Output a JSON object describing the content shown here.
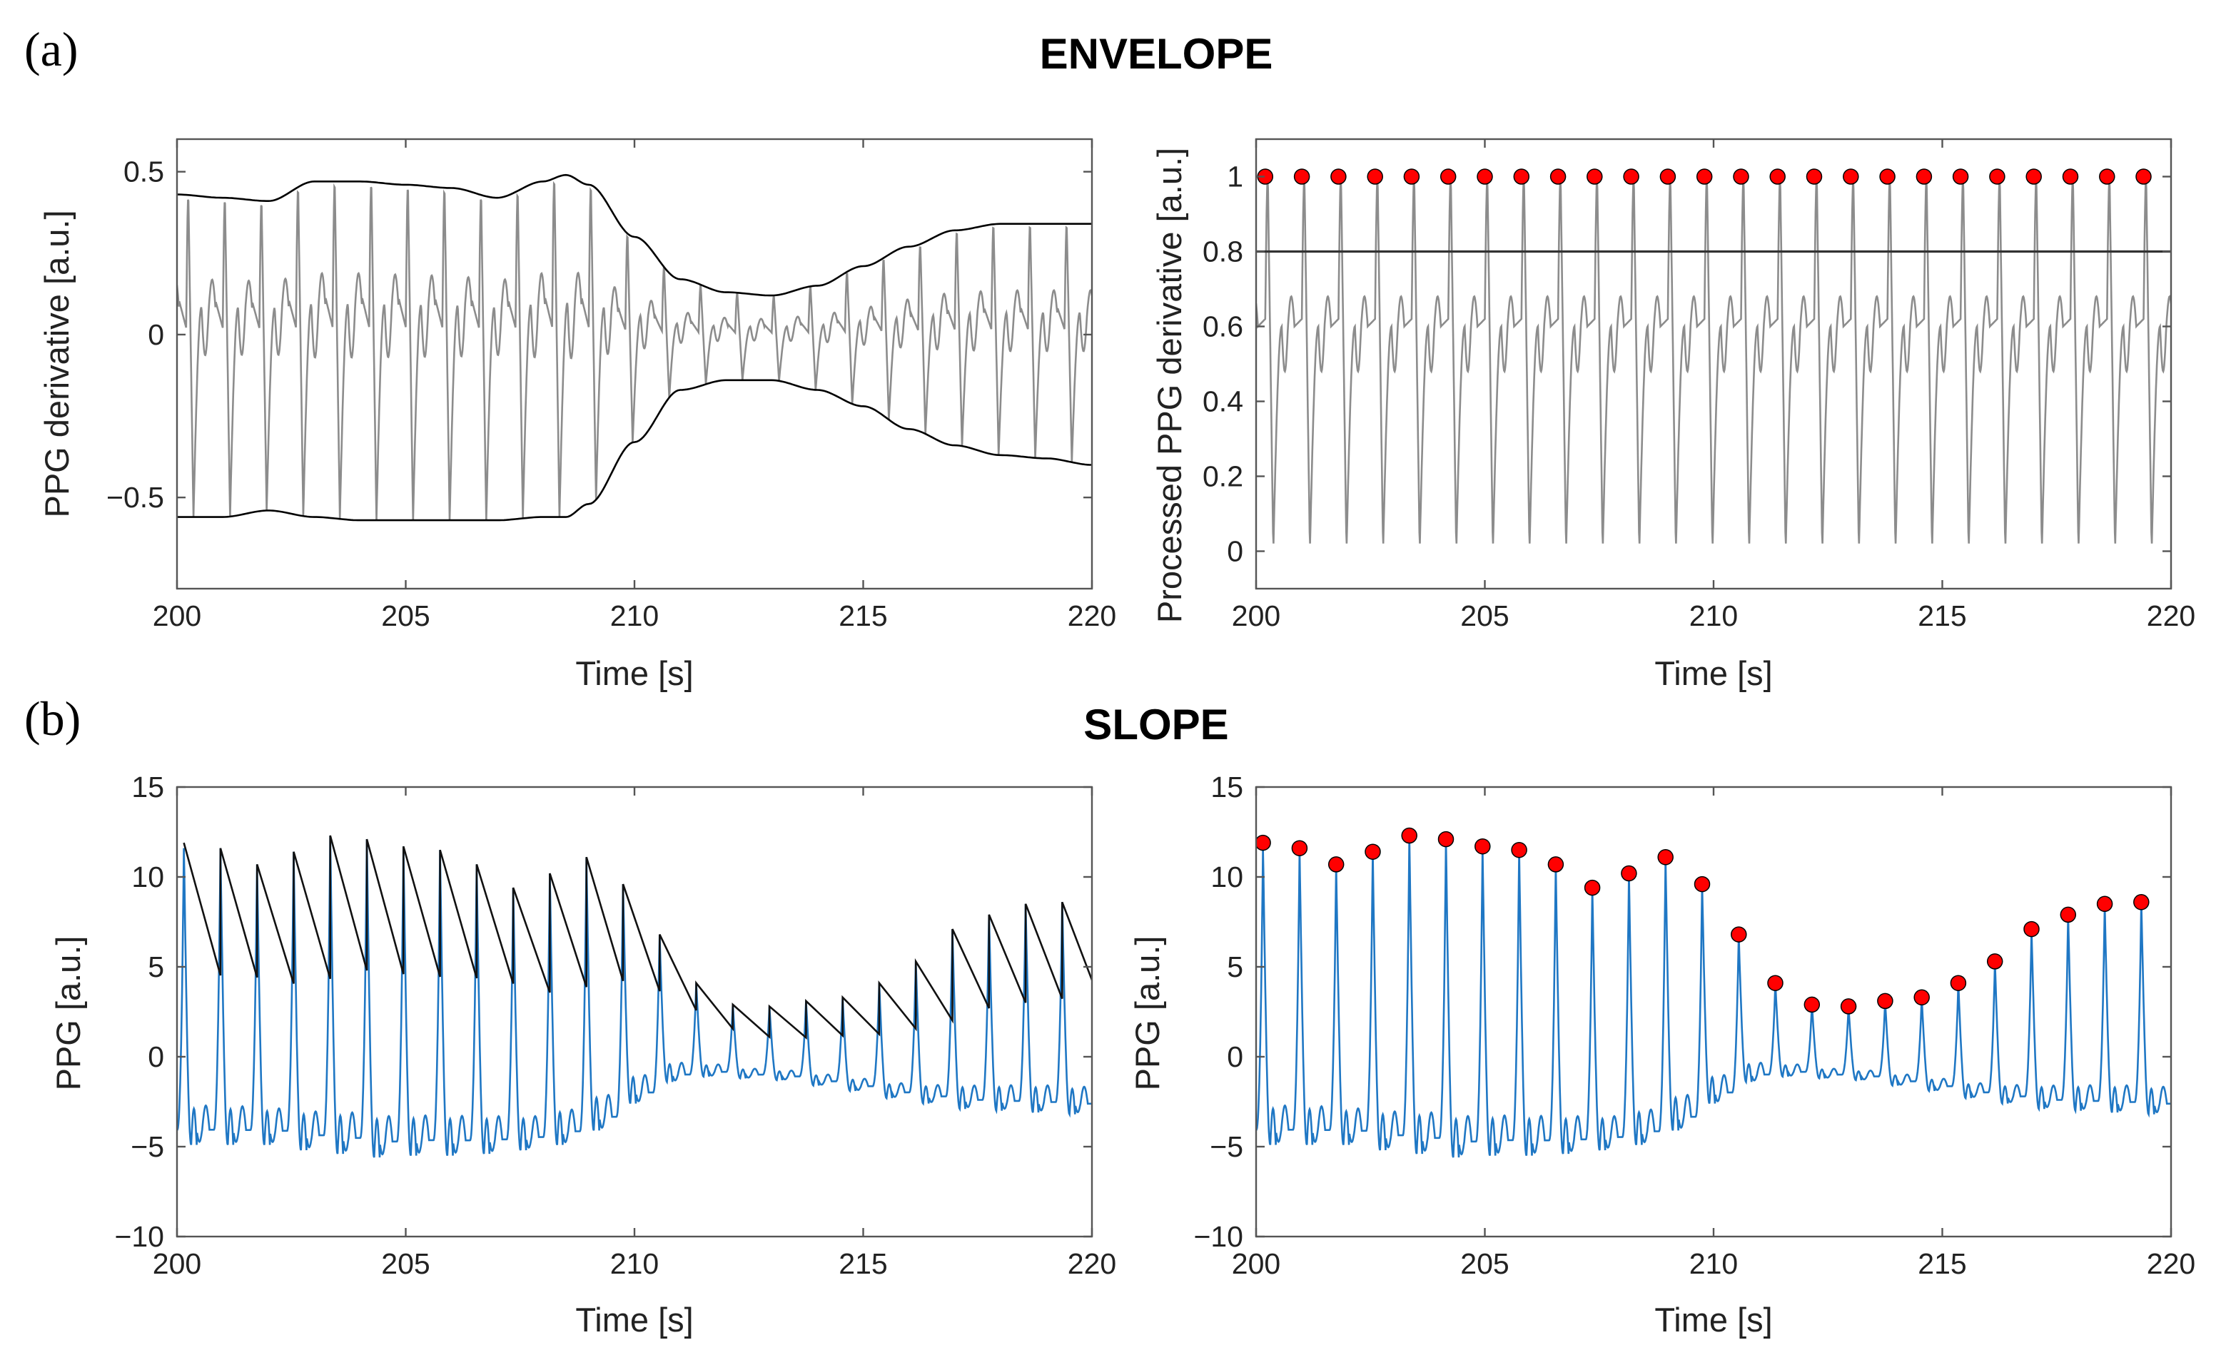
{
  "figure": {
    "panel_a_label": "(a)",
    "panel_b_label": "(b)",
    "section_a_title": "ENVELOPE",
    "section_b_title": "SLOPE"
  },
  "colors": {
    "ppg_derivative": "#8c8c8c",
    "envelope": "#000000",
    "ppg": "#1f77c4",
    "slope": "#111111",
    "peak_marker": "#ff0000",
    "threshold": "#333333"
  },
  "chart_data": [
    {
      "id": "a-left",
      "type": "line",
      "title": "",
      "xlabel": "Time [s]",
      "ylabel": "PPG derivative [a.u.]",
      "xlim": [
        200,
        220
      ],
      "ylim": [
        -0.78,
        0.6
      ],
      "xticks": [
        200,
        205,
        210,
        215,
        220
      ],
      "yticks": [
        0.5,
        0,
        -0.5
      ],
      "ytick_labels": [
        "0.5",
        "0",
        "−0.5"
      ],
      "grid": false,
      "beat_times": [
        200.2,
        201.0,
        201.8,
        202.6,
        203.4,
        204.2,
        205.0,
        205.8,
        206.6,
        207.4,
        208.2,
        209.0,
        209.8,
        210.6,
        211.4,
        212.2,
        213.0,
        213.8,
        214.6,
        215.4,
        216.2,
        217.0,
        217.8,
        218.6,
        219.4
      ],
      "series": [
        {
          "name": "PPG derivative",
          "color_key": "ppg_derivative"
        },
        {
          "name": "Upper envelope",
          "color_key": "envelope",
          "x": [
            200,
            201,
            202,
            203,
            204,
            205,
            206,
            207,
            208,
            208.5,
            209,
            210,
            211,
            212,
            213,
            214,
            215,
            216,
            217,
            218,
            219,
            220
          ],
          "y": [
            0.43,
            0.42,
            0.41,
            0.47,
            0.47,
            0.46,
            0.45,
            0.42,
            0.47,
            0.49,
            0.46,
            0.3,
            0.17,
            0.13,
            0.12,
            0.15,
            0.21,
            0.27,
            0.32,
            0.34,
            0.34,
            0.34
          ]
        },
        {
          "name": "Lower envelope",
          "color_key": "envelope",
          "x": [
            200,
            201,
            202,
            203,
            204,
            205,
            206,
            207,
            208,
            208.5,
            209,
            210,
            211,
            212,
            213,
            214,
            215,
            216,
            217,
            218,
            219,
            220
          ],
          "y": [
            -0.56,
            -0.56,
            -0.54,
            -0.56,
            -0.57,
            -0.57,
            -0.57,
            -0.57,
            -0.56,
            -0.56,
            -0.52,
            -0.33,
            -0.17,
            -0.14,
            -0.14,
            -0.17,
            -0.22,
            -0.29,
            -0.34,
            -0.37,
            -0.38,
            -0.4
          ]
        }
      ]
    },
    {
      "id": "a-right",
      "type": "line",
      "title": "",
      "xlabel": "Time [s]",
      "ylabel": "Processed PPG derivative [a.u.]",
      "xlim": [
        200,
        220
      ],
      "ylim": [
        -0.1,
        1.1
      ],
      "xticks": [
        200,
        205,
        210,
        215,
        220
      ],
      "yticks": [
        0,
        0.2,
        0.4,
        0.6,
        0.8,
        1
      ],
      "ytick_labels": [
        "0",
        "0.2",
        "0.4",
        "0.6",
        "0.8",
        "1"
      ],
      "grid": false,
      "threshold": 0.8,
      "peaks": {
        "x": [
          200.2,
          201.0,
          201.8,
          202.6,
          203.4,
          204.2,
          205.0,
          205.8,
          206.6,
          207.4,
          208.2,
          209.0,
          209.8,
          210.6,
          211.4,
          212.2,
          213.0,
          213.8,
          214.6,
          215.4,
          216.2,
          217.0,
          217.8,
          218.6,
          219.4
        ],
        "y": [
          1,
          1,
          1,
          1,
          1,
          1,
          1,
          1,
          1,
          1,
          1,
          1,
          1,
          1,
          1,
          1,
          1,
          1,
          1,
          1,
          1,
          1,
          1,
          1,
          1
        ]
      },
      "series": [
        {
          "name": "Processed PPG derivative",
          "color_key": "ppg_derivative"
        },
        {
          "name": "Threshold",
          "color_key": "threshold",
          "y": 0.8
        }
      ]
    },
    {
      "id": "b-left",
      "type": "line",
      "title": "",
      "xlabel": "Time [s]",
      "ylabel": "PPG [a.u.]",
      "xlim": [
        200,
        220
      ],
      "ylim": [
        -10,
        15
      ],
      "xticks": [
        200,
        205,
        210,
        215,
        220
      ],
      "yticks": [
        15,
        10,
        5,
        0,
        -5,
        -10
      ],
      "ytick_labels": [
        "15",
        "10",
        "5",
        "0",
        "−5",
        "−10"
      ],
      "grid": false,
      "beat_times": [
        200.15,
        200.95,
        201.75,
        202.55,
        203.35,
        204.15,
        204.95,
        205.75,
        206.55,
        207.35,
        208.15,
        208.95,
        209.75,
        210.55,
        211.35,
        212.15,
        212.95,
        213.75,
        214.55,
        215.35,
        216.15,
        216.95,
        217.75,
        218.55,
        219.35
      ],
      "beat_peaks": [
        11.9,
        11.6,
        10.7,
        11.4,
        12.3,
        12.1,
        11.7,
        11.5,
        10.7,
        9.4,
        10.2,
        11.1,
        9.6,
        6.8,
        4.1,
        2.9,
        2.8,
        3.1,
        3.3,
        4.1,
        5.3,
        7.1,
        7.9,
        8.5,
        8.6
      ],
      "beat_troughs": [
        -4.9,
        -4.9,
        -4.9,
        -5.2,
        -5.4,
        -5.6,
        -5.5,
        -5.5,
        -5.4,
        -5.2,
        -4.9,
        -4.1,
        -2.6,
        -1.4,
        -1.1,
        -1.2,
        -1.3,
        -1.6,
        -1.9,
        -2.3,
        -2.6,
        -2.9,
        -3.0,
        -3.1,
        -3.2
      ],
      "series": [
        {
          "name": "PPG",
          "color_key": "ppg"
        },
        {
          "name": "Slope sum",
          "color_key": "slope"
        }
      ]
    },
    {
      "id": "b-right",
      "type": "line",
      "title": "",
      "xlabel": "Time [s]",
      "ylabel": "PPG [a.u.]",
      "xlim": [
        200,
        220
      ],
      "ylim": [
        -10,
        15
      ],
      "xticks": [
        200,
        205,
        210,
        215,
        220
      ],
      "yticks": [
        15,
        10,
        5,
        0,
        -5,
        -10
      ],
      "ytick_labels": [
        "15",
        "10",
        "5",
        "0",
        "−5",
        "−10"
      ],
      "grid": false,
      "peaks": {
        "x": [
          200.15,
          200.95,
          201.75,
          202.55,
          203.35,
          204.15,
          204.95,
          205.75,
          206.55,
          207.35,
          208.15,
          208.95,
          209.75,
          210.55,
          211.35,
          212.15,
          212.95,
          213.75,
          214.55,
          215.35,
          216.15,
          216.95,
          217.75,
          218.55,
          219.35
        ],
        "y": [
          11.9,
          11.6,
          10.7,
          11.4,
          12.3,
          12.1,
          11.7,
          11.5,
          10.7,
          9.4,
          10.2,
          11.1,
          9.6,
          6.8,
          4.1,
          2.9,
          2.8,
          3.1,
          3.3,
          4.1,
          5.3,
          7.1,
          7.9,
          8.5,
          8.6
        ]
      },
      "series": [
        {
          "name": "PPG",
          "color_key": "ppg"
        },
        {
          "name": "Detected peaks",
          "color_key": "peak_marker"
        }
      ]
    }
  ]
}
